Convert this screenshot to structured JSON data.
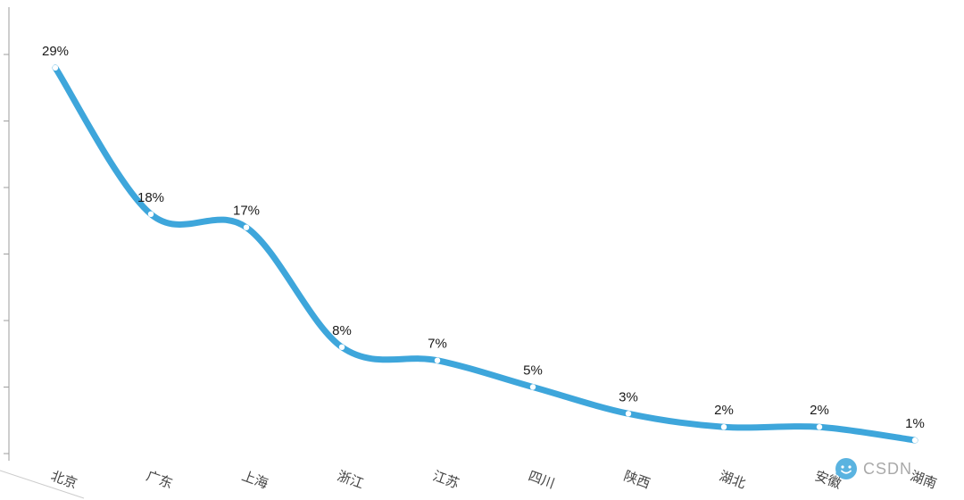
{
  "chart_data": {
    "type": "line",
    "title": "",
    "categories": [
      "北京",
      "广东",
      "上海",
      "浙江",
      "江苏",
      "四川",
      "陕西",
      "湖北",
      "安徽",
      "湖南"
    ],
    "values": [
      29,
      18,
      17,
      8,
      7,
      5,
      3,
      2,
      2,
      1
    ],
    "data_labels": [
      "29%",
      "18%",
      "17%",
      "8%",
      "7%",
      "5%",
      "3%",
      "2%",
      "2%",
      "1%"
    ],
    "xlabel": "",
    "ylabel": "",
    "ylim": [
      0,
      30
    ],
    "y_tick_step": 5,
    "grid": false,
    "legend": "none",
    "smooth": true,
    "line_color": "#3EA6DB",
    "marker_color": "#ffffff",
    "label_color": "#1a1a1a",
    "axis_color": "#9e9e9e",
    "x_label_color": "#444444",
    "x_label_rotation_deg": 20
  },
  "watermark": {
    "text": "CSDN",
    "text_color": "#9b9b9b",
    "icon": "csdn-logo-icon",
    "icon_color": "#3EA6DB"
  }
}
